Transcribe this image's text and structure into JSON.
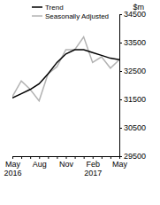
{
  "chart_data": {
    "type": "line",
    "y_label": "$m",
    "categories": [
      "May 2016",
      null,
      null,
      "Aug",
      null,
      null,
      "Nov",
      null,
      null,
      "Feb 2017",
      null,
      null,
      "May"
    ],
    "series": [
      {
        "name": "Trend",
        "color": "#000000",
        "values": [
          31550,
          31700,
          31850,
          32050,
          32400,
          32800,
          33100,
          33250,
          33250,
          33150,
          33050,
          32950,
          32900
        ]
      },
      {
        "name": "Seasonally Adjusted",
        "color": "#b3b3b3",
        "values": [
          31600,
          32150,
          31850,
          31450,
          32400,
          32650,
          33250,
          33250,
          33700,
          32800,
          33000,
          32600,
          32900
        ]
      }
    ],
    "ylim": [
      29500,
      34500
    ],
    "yticks": [
      29500,
      30500,
      31500,
      32500,
      33500,
      34500
    ],
    "legend": "upper left",
    "grid": false
  }
}
